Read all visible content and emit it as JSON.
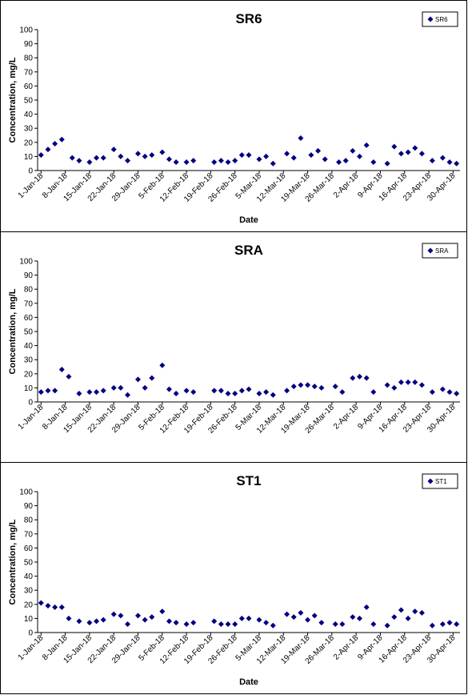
{
  "chart_data": [
    {
      "type": "scatter",
      "title": "SR6",
      "xlabel": "Date",
      "ylabel": "Concentration, mg/L",
      "ylim": [
        0,
        100
      ],
      "yticks": [
        0,
        10,
        20,
        30,
        40,
        50,
        60,
        70,
        80,
        90,
        100
      ],
      "xlim": [
        "2017-12-31",
        "2018-05-02"
      ],
      "xtick_labels": [
        "1-Jan-18",
        "8-Jan-18",
        "15-Jan-18",
        "22-Jan-18",
        "29-Jan-18",
        "5-Feb-18",
        "12-Feb-18",
        "19-Feb-18",
        "26-Feb-18",
        "5-Mar-18",
        "12-Mar-18",
        "19-Mar-18",
        "26-Mar-18",
        "2-Apr-18",
        "9-Apr-18",
        "16-Apr-18",
        "23-Apr-18",
        "30-Apr-18"
      ],
      "legend": "top-right",
      "grid": false,
      "color": "#000080",
      "series": [
        {
          "name": "SR6",
          "points": [
            [
              "2018-01-01",
              11
            ],
            [
              "2018-01-03",
              15
            ],
            [
              "2018-01-05",
              19
            ],
            [
              "2018-01-07",
              22
            ],
            [
              "2018-01-10",
              9
            ],
            [
              "2018-01-12",
              7
            ],
            [
              "2018-01-15",
              6
            ],
            [
              "2018-01-17",
              9
            ],
            [
              "2018-01-19",
              9
            ],
            [
              "2018-01-22",
              15
            ],
            [
              "2018-01-24",
              10
            ],
            [
              "2018-01-26",
              7
            ],
            [
              "2018-01-29",
              12
            ],
            [
              "2018-01-31",
              10
            ],
            [
              "2018-02-02",
              11
            ],
            [
              "2018-02-05",
              13
            ],
            [
              "2018-02-07",
              8
            ],
            [
              "2018-02-09",
              6
            ],
            [
              "2018-02-12",
              6
            ],
            [
              "2018-02-14",
              7
            ],
            [
              "2018-02-20",
              6
            ],
            [
              "2018-02-22",
              7
            ],
            [
              "2018-02-24",
              6
            ],
            [
              "2018-02-26",
              7
            ],
            [
              "2018-02-28",
              11
            ],
            [
              "2018-03-02",
              11
            ],
            [
              "2018-03-05",
              8
            ],
            [
              "2018-03-07",
              10
            ],
            [
              "2018-03-09",
              5
            ],
            [
              "2018-03-13",
              12
            ],
            [
              "2018-03-15",
              9
            ],
            [
              "2018-03-17",
              23
            ],
            [
              "2018-03-20",
              11
            ],
            [
              "2018-03-22",
              14
            ],
            [
              "2018-03-24",
              8
            ],
            [
              "2018-03-28",
              6
            ],
            [
              "2018-03-30",
              7
            ],
            [
              "2018-04-01",
              14
            ],
            [
              "2018-04-03",
              10
            ],
            [
              "2018-04-05",
              18
            ],
            [
              "2018-04-07",
              6
            ],
            [
              "2018-04-11",
              5
            ],
            [
              "2018-04-13",
              17
            ],
            [
              "2018-04-15",
              12
            ],
            [
              "2018-04-17",
              13
            ],
            [
              "2018-04-19",
              16
            ],
            [
              "2018-04-21",
              12
            ],
            [
              "2018-04-24",
              7
            ],
            [
              "2018-04-27",
              9
            ],
            [
              "2018-04-29",
              6
            ],
            [
              "2018-05-01",
              5
            ]
          ]
        }
      ]
    },
    {
      "type": "scatter",
      "title": "SRA",
      "xlabel": "",
      "ylabel": "Concentration, mg/L",
      "ylim": [
        0,
        100
      ],
      "yticks": [
        0,
        10,
        20,
        30,
        40,
        50,
        60,
        70,
        80,
        90,
        100
      ],
      "xlim": [
        "2017-12-31",
        "2018-05-02"
      ],
      "xtick_labels": [
        "1-Jan-18",
        "8-Jan-18",
        "15-Jan-18",
        "22-Jan-18",
        "29-Jan-18",
        "5-Feb-18",
        "12-Feb-18",
        "19-Feb-18",
        "26-Feb-18",
        "5-Mar-18",
        "12-Mar-18",
        "19-Mar-18",
        "26-Mar-18",
        "2-Apr-18",
        "9-Apr-18",
        "16-Apr-18",
        "23-Apr-18",
        "30-Apr-18"
      ],
      "legend": "top-right",
      "grid": false,
      "color": "#000080",
      "series": [
        {
          "name": "SRA",
          "points": [
            [
              "2018-01-01",
              7
            ],
            [
              "2018-01-03",
              8
            ],
            [
              "2018-01-05",
              8
            ],
            [
              "2018-01-07",
              23
            ],
            [
              "2018-01-09",
              18
            ],
            [
              "2018-01-12",
              6
            ],
            [
              "2018-01-15",
              7
            ],
            [
              "2018-01-17",
              7
            ],
            [
              "2018-01-19",
              8
            ],
            [
              "2018-01-22",
              10
            ],
            [
              "2018-01-24",
              10
            ],
            [
              "2018-01-26",
              5
            ],
            [
              "2018-01-29",
              16
            ],
            [
              "2018-01-31",
              10
            ],
            [
              "2018-02-02",
              17
            ],
            [
              "2018-02-05",
              26
            ],
            [
              "2018-02-07",
              9
            ],
            [
              "2018-02-09",
              6
            ],
            [
              "2018-02-12",
              8
            ],
            [
              "2018-02-14",
              7
            ],
            [
              "2018-02-20",
              8
            ],
            [
              "2018-02-22",
              8
            ],
            [
              "2018-02-24",
              6
            ],
            [
              "2018-02-26",
              6
            ],
            [
              "2018-02-28",
              8
            ],
            [
              "2018-03-02",
              9
            ],
            [
              "2018-03-05",
              6
            ],
            [
              "2018-03-07",
              7
            ],
            [
              "2018-03-09",
              5
            ],
            [
              "2018-03-13",
              8
            ],
            [
              "2018-03-15",
              11
            ],
            [
              "2018-03-17",
              12
            ],
            [
              "2018-03-19",
              12
            ],
            [
              "2018-03-21",
              11
            ],
            [
              "2018-03-23",
              10
            ],
            [
              "2018-03-27",
              11
            ],
            [
              "2018-03-29",
              7
            ],
            [
              "2018-04-01",
              17
            ],
            [
              "2018-04-03",
              18
            ],
            [
              "2018-04-05",
              17
            ],
            [
              "2018-04-07",
              7
            ],
            [
              "2018-04-11",
              12
            ],
            [
              "2018-04-13",
              10
            ],
            [
              "2018-04-15",
              14
            ],
            [
              "2018-04-17",
              14
            ],
            [
              "2018-04-19",
              14
            ],
            [
              "2018-04-21",
              12
            ],
            [
              "2018-04-24",
              7
            ],
            [
              "2018-04-27",
              9
            ],
            [
              "2018-04-29",
              7
            ],
            [
              "2018-05-01",
              6
            ]
          ]
        }
      ]
    },
    {
      "type": "scatter",
      "title": "ST1",
      "xlabel": "Date",
      "ylabel": "Concentration, mg/L",
      "ylim": [
        0,
        100
      ],
      "yticks": [
        0,
        10,
        20,
        30,
        40,
        50,
        60,
        70,
        80,
        90,
        100
      ],
      "xlim": [
        "2017-12-31",
        "2018-05-02"
      ],
      "xtick_labels": [
        "1-Jan-18",
        "8-Jan-18",
        "15-Jan-18",
        "22-Jan-18",
        "29-Jan-18",
        "5-Feb-18",
        "12-Feb-18",
        "19-Feb-18",
        "26-Feb-18",
        "5-Mar-18",
        "12-Mar-18",
        "19-Mar-18",
        "26-Mar-18",
        "2-Apr-18",
        "9-Apr-18",
        "16-Apr-18",
        "23-Apr-18",
        "30-Apr-18"
      ],
      "legend": "top-right",
      "grid": false,
      "color": "#000080",
      "series": [
        {
          "name": "ST1",
          "points": [
            [
              "2018-01-01",
              21
            ],
            [
              "2018-01-03",
              19
            ],
            [
              "2018-01-05",
              18
            ],
            [
              "2018-01-07",
              18
            ],
            [
              "2018-01-09",
              10
            ],
            [
              "2018-01-12",
              8
            ],
            [
              "2018-01-15",
              7
            ],
            [
              "2018-01-17",
              8
            ],
            [
              "2018-01-19",
              9
            ],
            [
              "2018-01-22",
              13
            ],
            [
              "2018-01-24",
              12
            ],
            [
              "2018-01-26",
              6
            ],
            [
              "2018-01-29",
              12
            ],
            [
              "2018-01-31",
              9
            ],
            [
              "2018-02-02",
              11
            ],
            [
              "2018-02-05",
              15
            ],
            [
              "2018-02-07",
              8
            ],
            [
              "2018-02-09",
              7
            ],
            [
              "2018-02-12",
              6
            ],
            [
              "2018-02-14",
              7
            ],
            [
              "2018-02-20",
              8
            ],
            [
              "2018-02-22",
              6
            ],
            [
              "2018-02-24",
              6
            ],
            [
              "2018-02-26",
              6
            ],
            [
              "2018-02-28",
              10
            ],
            [
              "2018-03-02",
              10
            ],
            [
              "2018-03-05",
              9
            ],
            [
              "2018-03-07",
              7
            ],
            [
              "2018-03-09",
              5
            ],
            [
              "2018-03-13",
              13
            ],
            [
              "2018-03-15",
              11
            ],
            [
              "2018-03-17",
              14
            ],
            [
              "2018-03-19",
              9
            ],
            [
              "2018-03-21",
              12
            ],
            [
              "2018-03-23",
              7
            ],
            [
              "2018-03-27",
              6
            ],
            [
              "2018-03-29",
              6
            ],
            [
              "2018-04-01",
              11
            ],
            [
              "2018-04-03",
              10
            ],
            [
              "2018-04-05",
              18
            ],
            [
              "2018-04-07",
              6
            ],
            [
              "2018-04-11",
              5
            ],
            [
              "2018-04-13",
              11
            ],
            [
              "2018-04-15",
              16
            ],
            [
              "2018-04-17",
              10
            ],
            [
              "2018-04-19",
              15
            ],
            [
              "2018-04-21",
              14
            ],
            [
              "2018-04-24",
              5
            ],
            [
              "2018-04-27",
              6
            ],
            [
              "2018-04-29",
              7
            ],
            [
              "2018-05-01",
              6
            ]
          ]
        }
      ]
    }
  ]
}
